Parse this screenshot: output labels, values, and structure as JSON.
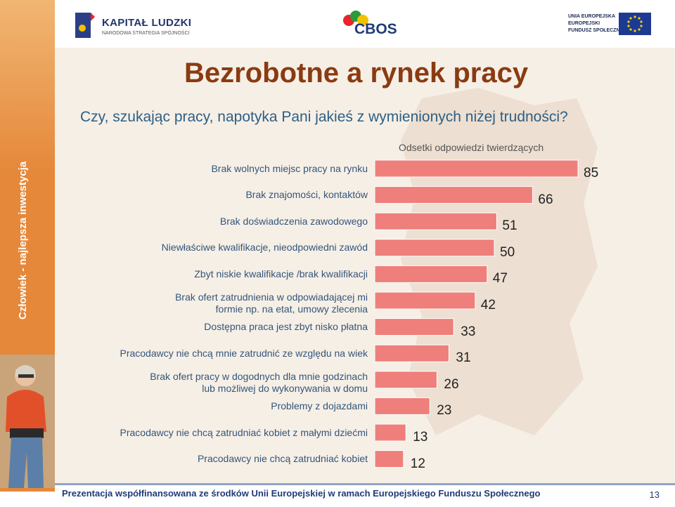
{
  "header": {
    "kapital_name": "KAPITAŁ LUDZKI",
    "kapital_sub": "NARODOWA STRATEGIA SPÓJNOŚCI",
    "cbos_name": "CBOS",
    "ue_line1": "UNIA EUROPEJSKA",
    "ue_line2": "EUROPEJSKI",
    "ue_line3": "FUNDUSZ SPOŁECZNY"
  },
  "sidebar_text": "Człowiek - najlepsza inwestycja",
  "title": "Bezrobotne a rynek pracy",
  "question": "Czy, szukając pracy, napotyka Pani jakieś z wymienionych niżej trudności?",
  "footer": {
    "text": "Prezentacja współfinansowana ze środków Unii Europejskiej w ramach Europejskiego Funduszu Społecznego",
    "page": "13"
  },
  "chart_data": {
    "type": "bar",
    "orientation": "horizontal",
    "title": "Odsetki odpowiedzi twierdzących",
    "bar_color": "#ee7f7b",
    "categories": [
      [
        "Brak wolnych miejsc pracy na rynku"
      ],
      [
        "Brak znajomości, kontaktów"
      ],
      [
        "Brak doświadczenia zawodowego"
      ],
      [
        "Niewłaściwe kwalifikacje, nieodpowiedni zawód"
      ],
      [
        "Zbyt niskie kwalifikacje /brak kwalifikacji"
      ],
      [
        "Brak ofert zatrudnienia w odpowiadającej mi",
        "formie np. na etat, umowy zlecenia"
      ],
      [
        "Dostępna praca jest zbyt nisko płatna"
      ],
      [
        "Pracodawcy nie chcą mnie zatrudnić ze względu na wiek"
      ],
      [
        "Brak ofert pracy w dogodnych dla mnie godzinach",
        "lub możliwej do wykonywania w domu"
      ],
      [
        "Problemy z dojazdami"
      ],
      [
        "Pracodawcy nie chcą zatrudniać kobiet z małymi dziećmi"
      ],
      [
        "Pracodawcy nie chcą zatrudniać kobiet"
      ]
    ],
    "values": [
      85,
      66,
      51,
      50,
      47,
      42,
      33,
      31,
      26,
      23,
      13,
      12
    ],
    "xlim": [
      0,
      100
    ]
  }
}
